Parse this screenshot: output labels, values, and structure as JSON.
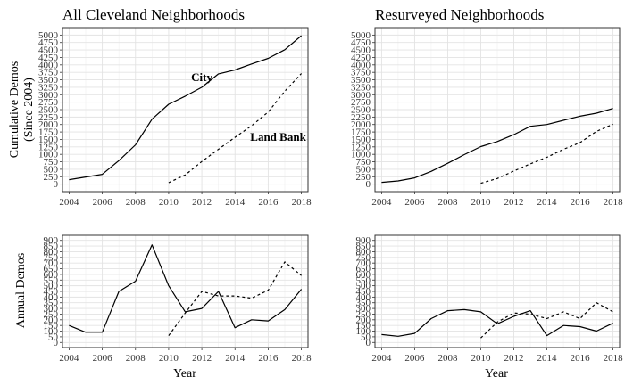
{
  "ylabel_top_line1": "Cumulative Demos",
  "ylabel_top_line2": "(Since 2004)",
  "ylabel_bottom": "Annual Demos",
  "xlabel": "Year",
  "chart_data": [
    {
      "type": "line",
      "title": "All Cleveland Neighborhoods",
      "xlabel": "",
      "ylabel": "Cumulative Demos (Since 2004)",
      "ylim": [
        -250,
        5250
      ],
      "yticks": [
        0,
        250,
        500,
        750,
        1000,
        1250,
        1500,
        1750,
        2000,
        2250,
        2500,
        2750,
        3000,
        3250,
        3500,
        3750,
        4000,
        4250,
        4500,
        4750,
        5000
      ],
      "xlim": [
        2003.6,
        2018.4
      ],
      "xticks": [
        2004,
        2006,
        2008,
        2010,
        2012,
        2014,
        2016,
        2018
      ],
      "series": [
        {
          "name": "City",
          "style": "solid",
          "x": [
            2004,
            2005,
            2006,
            2007,
            2008,
            2009,
            2010,
            2011,
            2012,
            2013,
            2014,
            2015,
            2016,
            2017,
            2018
          ],
          "y": [
            150,
            240,
            330,
            790,
            1320,
            2180,
            2680,
            2950,
            3250,
            3700,
            3830,
            4030,
            4220,
            4510,
            4980
          ]
        },
        {
          "name": "Land Bank",
          "style": "dashed",
          "x": [
            2010,
            2011,
            2012,
            2013,
            2014,
            2015,
            2016,
            2017,
            2018
          ],
          "y": [
            50,
            310,
            760,
            1170,
            1570,
            1960,
            2420,
            3120,
            3710
          ]
        }
      ],
      "annotations": [
        {
          "text": "City",
          "x": 2012,
          "y": 3450
        },
        {
          "text": "Land Bank",
          "x": 2016.6,
          "y": 1450
        }
      ],
      "grid": true
    },
    {
      "type": "line",
      "title": "Resurveyed Neighborhoods",
      "xlabel": "",
      "ylabel": "",
      "ylim": [
        -250,
        5250
      ],
      "yticks": [
        0,
        250,
        500,
        750,
        1000,
        1250,
        1500,
        1750,
        2000,
        2250,
        2500,
        2750,
        3000,
        3250,
        3500,
        3750,
        4000,
        4250,
        4500,
        4750,
        5000
      ],
      "xlim": [
        2003.6,
        2018.4
      ],
      "xticks": [
        2004,
        2006,
        2008,
        2010,
        2012,
        2014,
        2016,
        2018
      ],
      "series": [
        {
          "name": "City",
          "style": "solid",
          "x": [
            2004,
            2005,
            2006,
            2007,
            2008,
            2009,
            2010,
            2011,
            2012,
            2013,
            2014,
            2015,
            2016,
            2017,
            2018
          ],
          "y": [
            60,
            110,
            210,
            430,
            700,
            990,
            1260,
            1430,
            1660,
            1940,
            2000,
            2140,
            2280,
            2380,
            2540
          ]
        },
        {
          "name": "Land Bank",
          "style": "dashed",
          "x": [
            2010,
            2011,
            2012,
            2013,
            2014,
            2015,
            2016,
            2017,
            2018
          ],
          "y": [
            30,
            190,
            440,
            680,
            900,
            1170,
            1390,
            1770,
            2010
          ]
        }
      ],
      "grid": true
    },
    {
      "type": "line",
      "title": "",
      "xlabel": "Year",
      "ylabel": "Annual Demos",
      "ylim": [
        -45,
        945
      ],
      "yticks": [
        0,
        50,
        100,
        150,
        200,
        250,
        300,
        350,
        400,
        450,
        500,
        550,
        600,
        650,
        700,
        750,
        800,
        850,
        900
      ],
      "xlim": [
        2003.6,
        2018.4
      ],
      "xticks": [
        2004,
        2006,
        2008,
        2010,
        2012,
        2014,
        2016,
        2018
      ],
      "series": [
        {
          "name": "City",
          "style": "solid",
          "x": [
            2004,
            2005,
            2006,
            2007,
            2008,
            2009,
            2010,
            2011,
            2012,
            2013,
            2014,
            2015,
            2016,
            2017,
            2018
          ],
          "y": [
            150,
            90,
            90,
            450,
            540,
            860,
            500,
            270,
            300,
            450,
            130,
            200,
            190,
            290,
            470
          ]
        },
        {
          "name": "Land Bank",
          "style": "dashed",
          "x": [
            2010,
            2011,
            2012,
            2013,
            2014,
            2015,
            2016,
            2017,
            2018
          ],
          "y": [
            60,
            260,
            450,
            410,
            410,
            390,
            460,
            710,
            590
          ]
        }
      ],
      "grid": true
    },
    {
      "type": "line",
      "title": "",
      "xlabel": "Year",
      "ylabel": "",
      "ylim": [
        -45,
        945
      ],
      "yticks": [
        0,
        50,
        100,
        150,
        200,
        250,
        300,
        350,
        400,
        450,
        500,
        550,
        600,
        650,
        700,
        750,
        800,
        850,
        900
      ],
      "xlim": [
        2003.6,
        2018.4
      ],
      "xticks": [
        2004,
        2006,
        2008,
        2010,
        2012,
        2014,
        2016,
        2018
      ],
      "series": [
        {
          "name": "City",
          "style": "solid",
          "x": [
            2004,
            2005,
            2006,
            2007,
            2008,
            2009,
            2010,
            2011,
            2012,
            2013,
            2014,
            2015,
            2016,
            2017,
            2018
          ],
          "y": [
            70,
            55,
            80,
            210,
            280,
            290,
            270,
            165,
            230,
            280,
            60,
            150,
            140,
            100,
            170
          ]
        },
        {
          "name": "Land Bank",
          "style": "dashed",
          "x": [
            2010,
            2011,
            2012,
            2013,
            2014,
            2015,
            2016,
            2017,
            2018
          ],
          "y": [
            40,
            180,
            260,
            250,
            210,
            270,
            210,
            350,
            270
          ]
        }
      ],
      "grid": true
    }
  ]
}
